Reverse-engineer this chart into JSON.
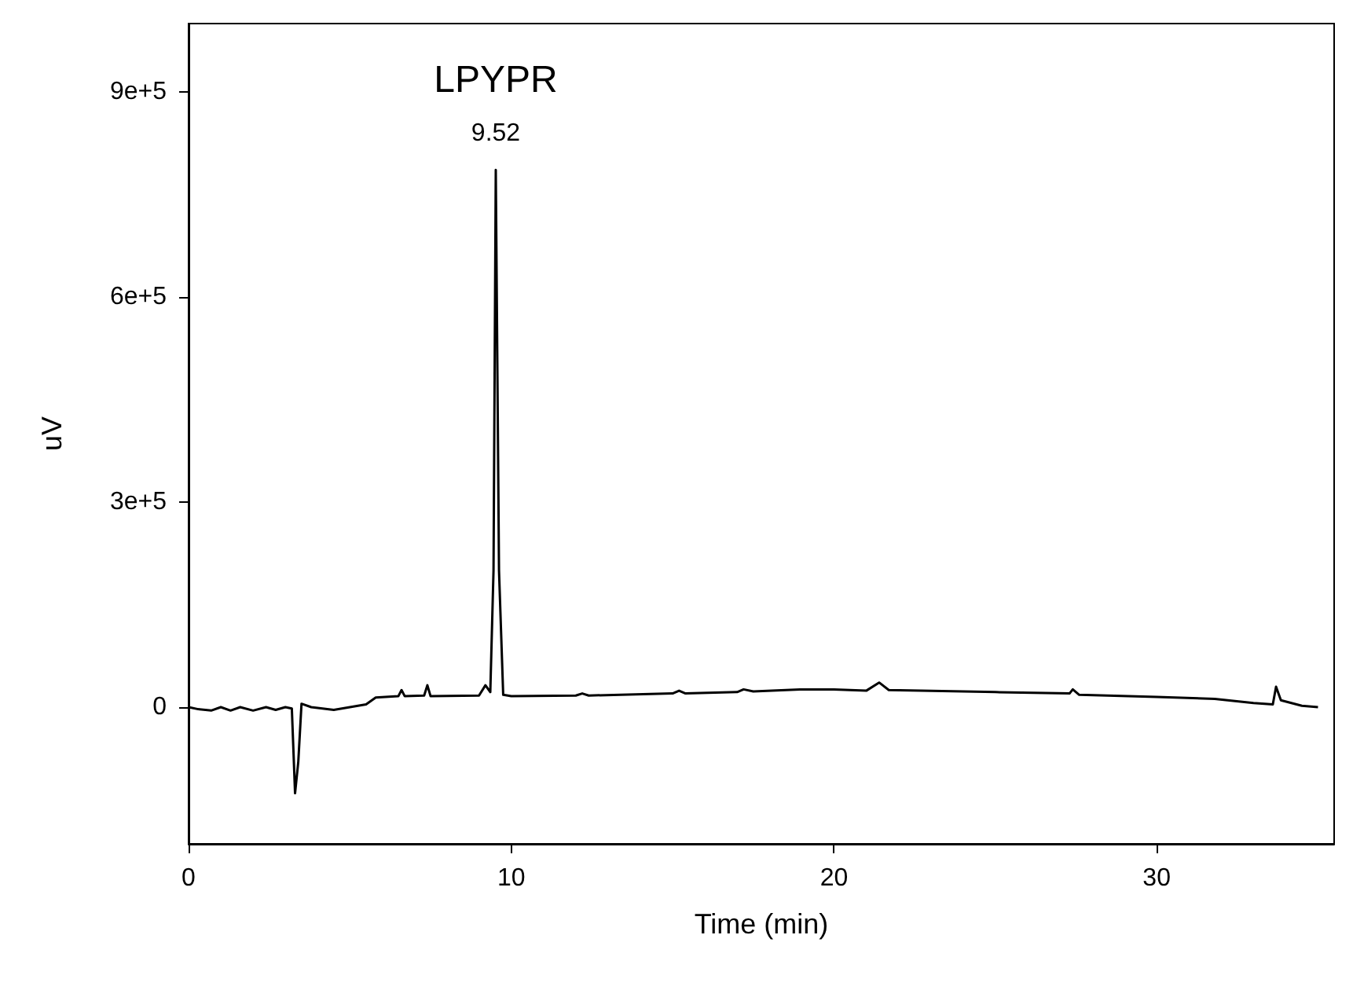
{
  "chart_data": {
    "type": "line",
    "xlabel": "Time (min)",
    "ylabel": "uV",
    "annotations": [
      {
        "text": "LPYPR",
        "x": 9.52,
        "y": 786000
      },
      {
        "text": "9.52",
        "x": 9.52,
        "y": 786000
      }
    ],
    "xlim": [
      0,
      35.5
    ],
    "xticks": [
      0,
      10,
      20,
      30
    ],
    "ylim": [
      -200000,
      1000000
    ],
    "yticks": [
      0,
      {
        "value": 300000,
        "label": "3e+5"
      },
      {
        "value": 600000,
        "label": "6e+5"
      },
      {
        "value": 900000,
        "label": "9e+5"
      }
    ],
    "marker": "none",
    "line_style": "solid",
    "series": [
      {
        "color": "#000000",
        "x": [
          0,
          0.3,
          0.7,
          1.0,
          1.3,
          1.6,
          2.0,
          2.4,
          2.7,
          3.0,
          3.2,
          3.3,
          3.4,
          3.5,
          3.8,
          4.5,
          5.0,
          5.5,
          5.8,
          6.5,
          6.6,
          6.7,
          7.3,
          7.4,
          7.5,
          9.0,
          9.2,
          9.35,
          9.45,
          9.52,
          9.62,
          9.75,
          10,
          12,
          12.2,
          12.4,
          15,
          15.2,
          15.4,
          17,
          17.2,
          17.5,
          19,
          20,
          21,
          21.4,
          21.7,
          25,
          27.3,
          27.4,
          27.6,
          30,
          31.8,
          33,
          33.6,
          33.7,
          33.85,
          34.5,
          35
        ],
        "values": [
          0,
          -3000,
          -5000,
          0,
          -5000,
          0,
          -5000,
          0,
          -4000,
          0,
          -2000,
          -126000,
          -80000,
          5000,
          0,
          -4000,
          0,
          4000,
          14000,
          16000,
          25000,
          16000,
          17000,
          32000,
          16000,
          17000,
          32000,
          22000,
          200000,
          786000,
          200000,
          18000,
          16000,
          17000,
          20000,
          17000,
          20000,
          24000,
          20000,
          22000,
          26000,
          23000,
          26000,
          26000,
          24000,
          36000,
          25000,
          22000,
          20000,
          26000,
          18000,
          15000,
          12000,
          6000,
          4000,
          30000,
          10000,
          2000,
          0
        ]
      }
    ]
  }
}
